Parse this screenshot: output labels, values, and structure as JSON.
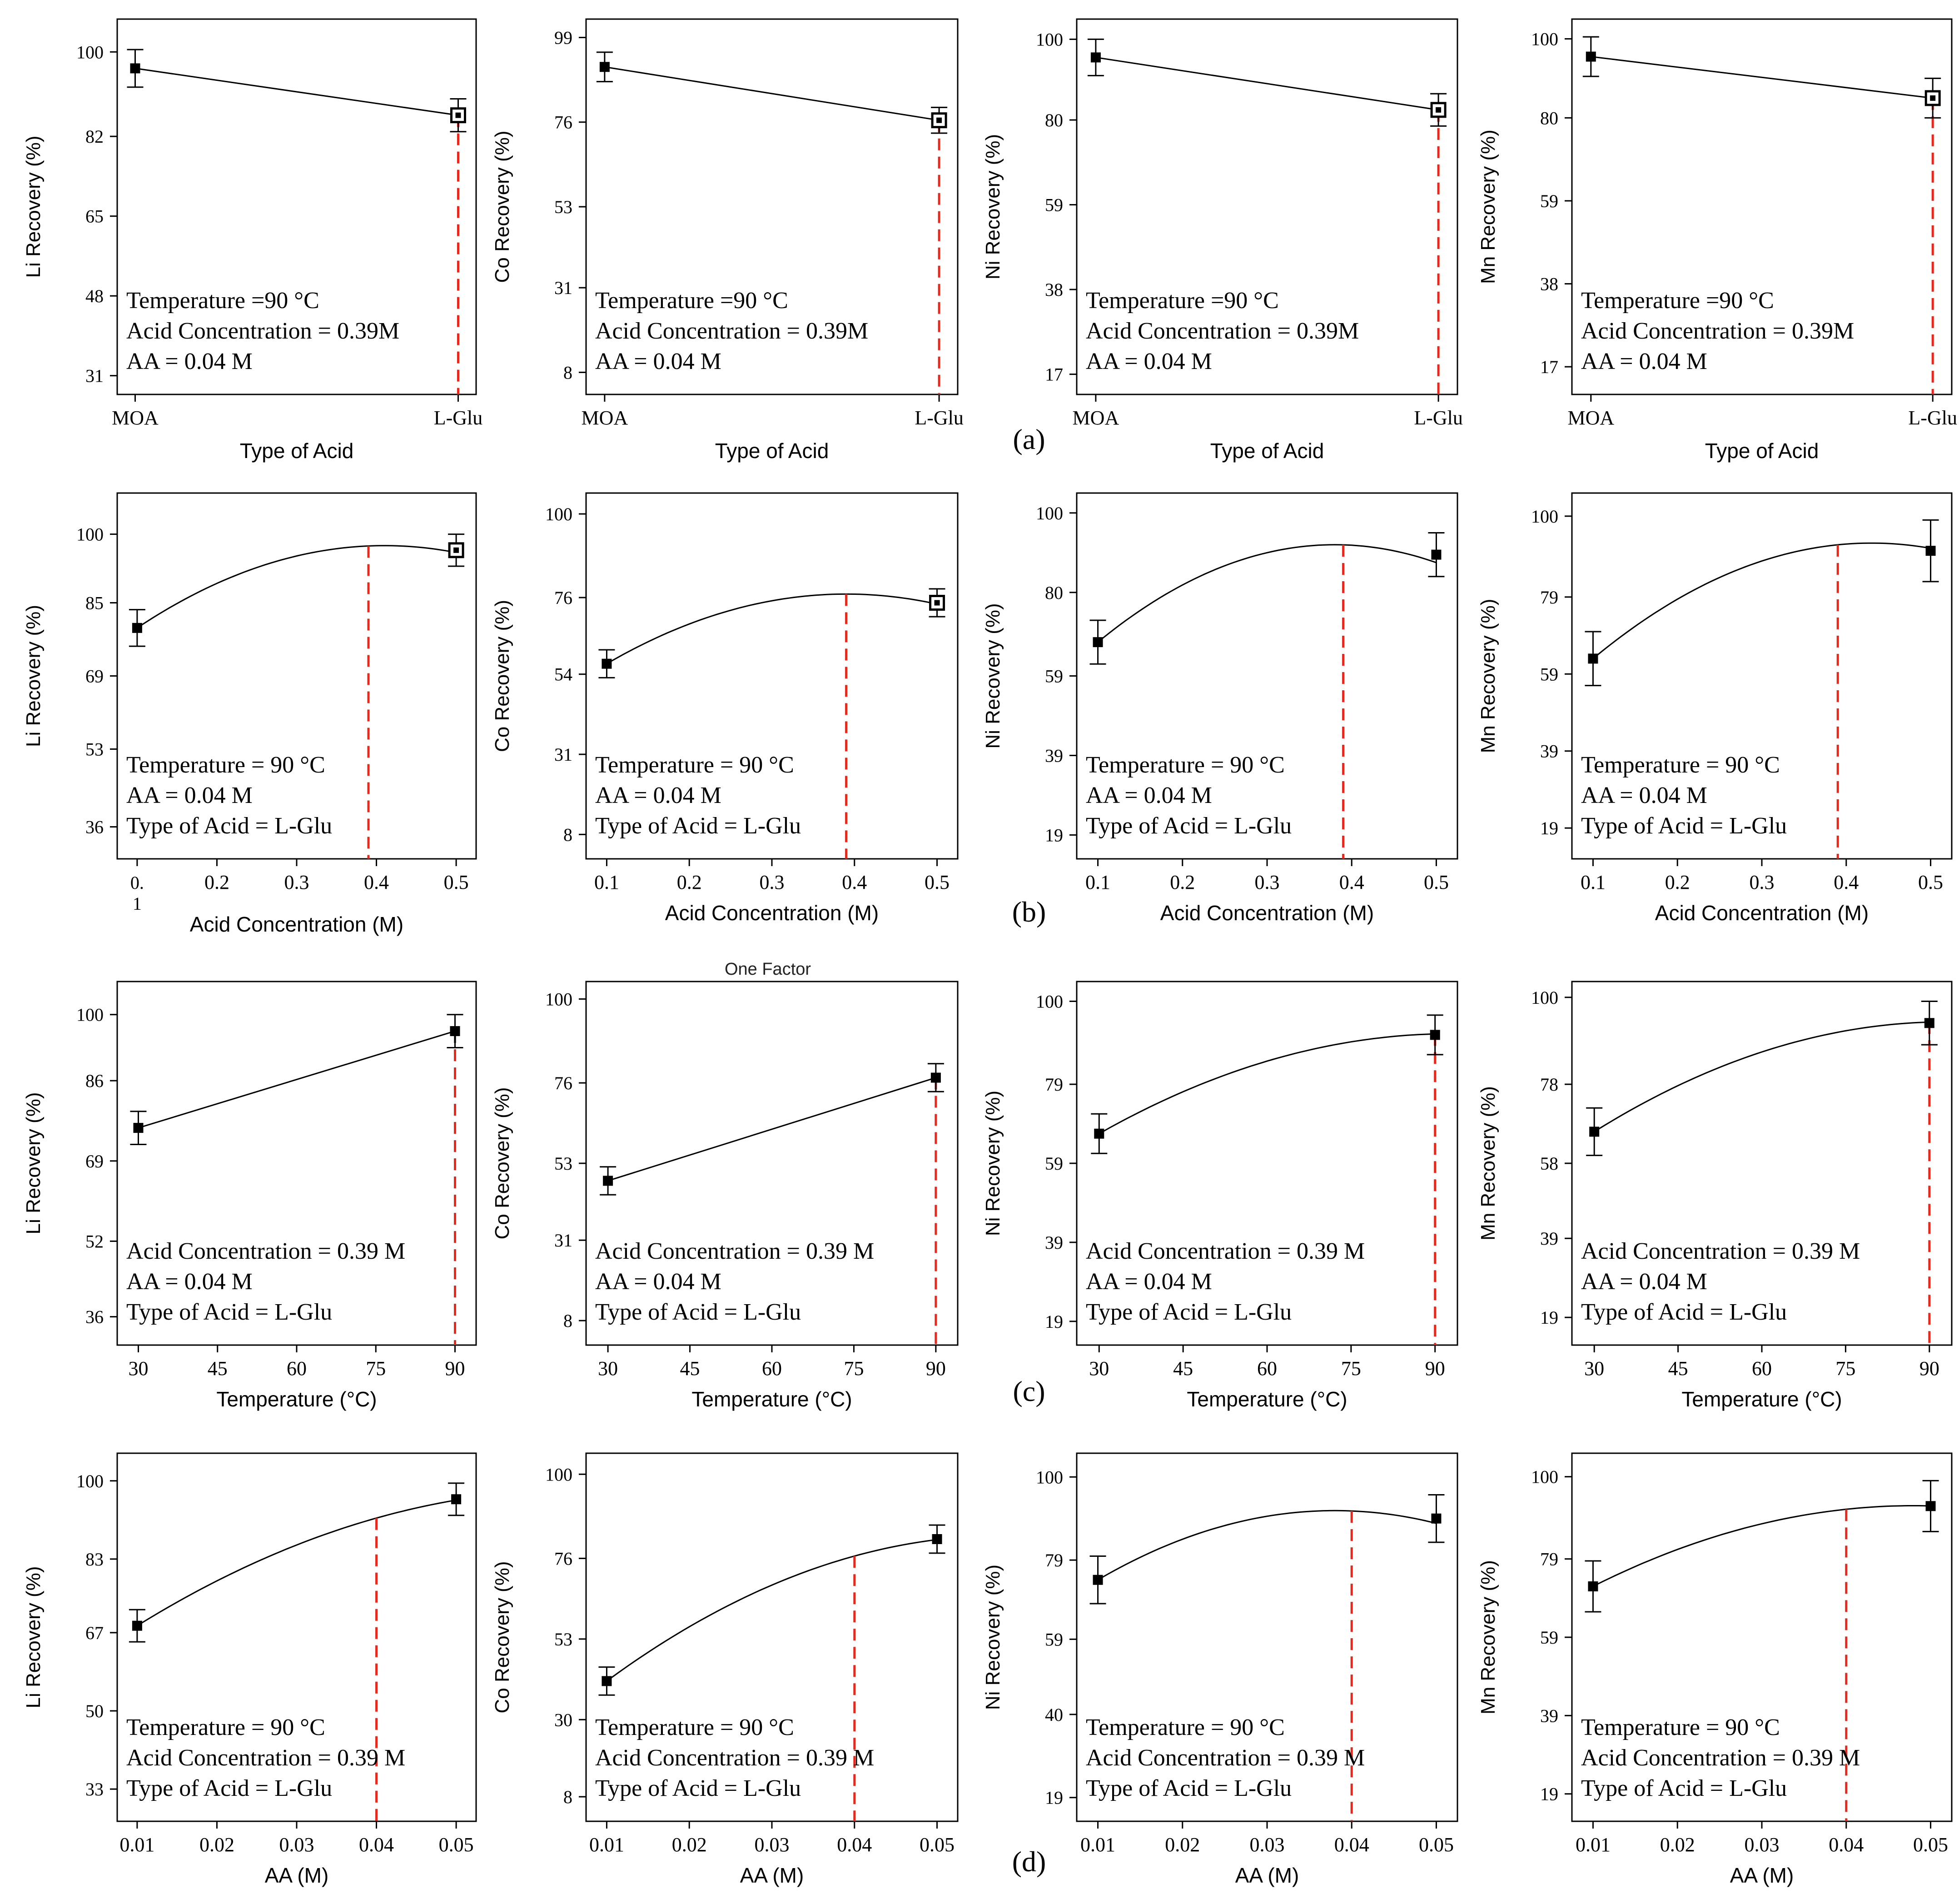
{
  "figure": {
    "row_labels": [
      "(a)",
      "(b)",
      "(c)",
      "(d)"
    ],
    "ghost_title": "One Factor",
    "extra_tick_fragments": [
      "0.",
      "1"
    ],
    "colors": {
      "axis": "#000000",
      "curve": "#000000",
      "marker": "#000000",
      "optimum_line": "#e8281b",
      "background": "#ffffff"
    }
  },
  "chart_data": [
    {
      "id": "a1",
      "row": 0,
      "col": 0,
      "type": "line",
      "xkind": "cat",
      "xlabel": "Type of Acid",
      "ylabel": "Li Recovery (%)",
      "categories": [
        "MOA",
        "L-Glu"
      ],
      "yticks": [
        "31",
        "48",
        "65",
        "82",
        "100"
      ],
      "ylim": [
        27,
        107
      ],
      "points": [
        {
          "x": "MOA",
          "y": 96.5,
          "err": 4.0,
          "marker": "filled"
        },
        {
          "x": "L-Glu",
          "y": 86.5,
          "err": 3.5,
          "marker": "hollow"
        }
      ],
      "optimum_x": "L-Glu",
      "notes": [
        "Temperature =90 °C",
        "Acid Concentration = 0.39M",
        "AA = 0.04 M"
      ]
    },
    {
      "id": "a2",
      "row": 0,
      "col": 1,
      "type": "line",
      "xkind": "cat",
      "xlabel": "Type of Acid",
      "ylabel": "Co Recovery (%)",
      "categories": [
        "MOA",
        "L-Glu"
      ],
      "yticks": [
        "8",
        "31",
        "53",
        "76",
        "99"
      ],
      "ylim": [
        2,
        104
      ],
      "points": [
        {
          "x": "MOA",
          "y": 91.0,
          "err": 4.0,
          "marker": "filled"
        },
        {
          "x": "L-Glu",
          "y": 76.5,
          "err": 3.5,
          "marker": "hollow"
        }
      ],
      "optimum_x": "L-Glu",
      "notes": [
        "Temperature =90 °C",
        "Acid Concentration = 0.39M",
        "AA = 0.04 M"
      ]
    },
    {
      "id": "a3",
      "row": 0,
      "col": 2,
      "type": "line",
      "xkind": "cat",
      "xlabel": "Type of Acid",
      "ylabel": "Ni Recovery (%)",
      "categories": [
        "MOA",
        "L-Glu"
      ],
      "yticks": [
        "17",
        "38",
        "59",
        "80",
        "100"
      ],
      "ylim": [
        12,
        105
      ],
      "points": [
        {
          "x": "MOA",
          "y": 95.5,
          "err": 4.5,
          "marker": "filled"
        },
        {
          "x": "L-Glu",
          "y": 82.5,
          "err": 4.0,
          "marker": "hollow"
        }
      ],
      "optimum_x": "L-Glu",
      "notes": [
        "Temperature =90 °C",
        "Acid Concentration = 0.39M",
        "AA = 0.04 M"
      ]
    },
    {
      "id": "a4",
      "row": 0,
      "col": 3,
      "type": "line",
      "xkind": "cat",
      "xlabel": "Type of Acid",
      "ylabel": "Mn Recovery (%)",
      "categories": [
        "MOA",
        "L-Glu"
      ],
      "yticks": [
        "17",
        "38",
        "59",
        "80",
        "100"
      ],
      "ylim": [
        10,
        105
      ],
      "points": [
        {
          "x": "MOA",
          "y": 95.5,
          "err": 5.0,
          "marker": "filled"
        },
        {
          "x": "L-Glu",
          "y": 85.0,
          "err": 5.0,
          "marker": "hollow"
        }
      ],
      "optimum_x": "L-Glu",
      "notes": [
        "Temperature =90 °C",
        "Acid Concentration = 0.39M",
        "AA = 0.04 M"
      ]
    },
    {
      "id": "b1",
      "row": 1,
      "col": 0,
      "type": "line",
      "xkind": "num",
      "xlabel": "Acid Concentration (M)",
      "ylabel": "Li Recovery (%)",
      "xticks": [
        "0.2",
        "0.3",
        "0.4",
        "0.5"
      ],
      "xlim": [
        0.075,
        0.525
      ],
      "yticks": [
        "36",
        "53",
        "69",
        "85",
        "100"
      ],
      "ylim": [
        29,
        109
      ],
      "points": [
        {
          "x": 0.1,
          "y": 79.5,
          "err": 4.0,
          "marker": "filled"
        },
        {
          "x": 0.5,
          "y": 96.5,
          "err": 3.5,
          "marker": "hollow"
        }
      ],
      "curve": {
        "peak_x": 0.41,
        "peak_y": 97.5
      },
      "optimum_x": 0.39,
      "notes": [
        "Temperature = 90 °C",
        "AA = 0.04 M",
        "Type of Acid = L-Glu"
      ]
    },
    {
      "id": "b2",
      "row": 1,
      "col": 1,
      "type": "line",
      "xkind": "num",
      "xlabel": "Acid Concentration (M)",
      "ylabel": "Co Recovery (%)",
      "xticks": [
        "0.1",
        "0.2",
        "0.3",
        "0.4",
        "0.5"
      ],
      "xlim": [
        0.075,
        0.525
      ],
      "yticks": [
        "8",
        "31",
        "54",
        "76",
        "100"
      ],
      "ylim": [
        1,
        106
      ],
      "points": [
        {
          "x": 0.1,
          "y": 57.0,
          "err": 4.0,
          "marker": "filled"
        },
        {
          "x": 0.5,
          "y": 74.5,
          "err": 4.0,
          "marker": "hollow"
        }
      ],
      "curve": {
        "peak_x": 0.39,
        "peak_y": 77.0
      },
      "optimum_x": 0.39,
      "notes": [
        "Temperature = 90 °C",
        "AA = 0.04 M",
        "Type of Acid = L-Glu"
      ]
    },
    {
      "id": "b3",
      "row": 1,
      "col": 2,
      "type": "line",
      "xkind": "num",
      "xlabel": "Acid Concentration (M)",
      "ylabel": "Ni Recovery (%)",
      "xticks": [
        "0.1",
        "0.2",
        "0.3",
        "0.4",
        "0.5"
      ],
      "xlim": [
        0.075,
        0.525
      ],
      "yticks": [
        "19",
        "39",
        "59",
        "80",
        "100"
      ],
      "ylim": [
        13,
        105
      ],
      "points": [
        {
          "x": 0.1,
          "y": 67.5,
          "err": 5.5,
          "marker": "filled"
        },
        {
          "x": 0.5,
          "y": 89.5,
          "err": 5.5,
          "marker": "filled"
        }
      ],
      "curve": {
        "peak_x": 0.38,
        "peak_y": 92.0
      },
      "optimum_x": 0.39,
      "notes": [
        "Temperature = 90 °C",
        "AA = 0.04 M",
        "Type of Acid = L-Glu"
      ]
    },
    {
      "id": "b4",
      "row": 1,
      "col": 3,
      "type": "line",
      "xkind": "num",
      "xlabel": "Acid Concentration (M)",
      "ylabel": "Mn Recovery (%)",
      "xticks": [
        "0.1",
        "0.2",
        "0.3",
        "0.4",
        "0.5"
      ],
      "xlim": [
        0.075,
        0.525
      ],
      "yticks": [
        "19",
        "39",
        "59",
        "79",
        "100"
      ],
      "ylim": [
        11,
        106
      ],
      "points": [
        {
          "x": 0.1,
          "y": 63.0,
          "err": 7.0,
          "marker": "filled"
        },
        {
          "x": 0.5,
          "y": 91.0,
          "err": 8.0,
          "marker": "filled"
        }
      ],
      "curve": {
        "peak_x": 0.43,
        "peak_y": 93.0
      },
      "optimum_x": 0.39,
      "notes": [
        "Temperature = 90 °C",
        "AA = 0.04 M",
        "Type of Acid = L-Glu"
      ]
    },
    {
      "id": "c1",
      "row": 2,
      "col": 0,
      "type": "line",
      "xkind": "num",
      "xlabel": "Temperature (°C)",
      "ylabel": "Li Recovery (%)",
      "xticks": [
        "30",
        "45",
        "60",
        "75",
        "90"
      ],
      "xlim": [
        26,
        94
      ],
      "yticks": [
        "36",
        "52",
        "69",
        "86",
        "100"
      ],
      "ylim": [
        30,
        107
      ],
      "points": [
        {
          "x": 30,
          "y": 76.0,
          "err": 3.5,
          "marker": "filled"
        },
        {
          "x": 90,
          "y": 96.5,
          "err": 3.5,
          "marker": "filled"
        }
      ],
      "curve": {
        "kind": "straight"
      },
      "optimum_x": 90,
      "notes": [
        "Acid Concentration = 0.39 M",
        "AA = 0.04 M",
        "Type of Acid = L-Glu"
      ]
    },
    {
      "id": "c2",
      "row": 2,
      "col": 1,
      "type": "line",
      "xkind": "num",
      "xlabel": "Temperature (°C)",
      "ylabel": "Co Recovery (%)",
      "xticks": [
        "30",
        "45",
        "60",
        "75",
        "90"
      ],
      "xlim": [
        26,
        94
      ],
      "yticks": [
        "8",
        "31",
        "53",
        "76",
        "100"
      ],
      "ylim": [
        1,
        105
      ],
      "points": [
        {
          "x": 30,
          "y": 48.0,
          "err": 4.0,
          "marker": "filled"
        },
        {
          "x": 90,
          "y": 77.5,
          "err": 4.0,
          "marker": "filled"
        }
      ],
      "curve": {
        "kind": "straight"
      },
      "optimum_x": 90,
      "notes": [
        "Acid Concentration = 0.39 M",
        "AA = 0.04 M",
        "Type of Acid = L-Glu"
      ]
    },
    {
      "id": "c3",
      "row": 2,
      "col": 2,
      "type": "line",
      "xkind": "num",
      "xlabel": "Temperature (°C)",
      "ylabel": "Ni Recovery (%)",
      "xticks": [
        "30",
        "45",
        "60",
        "75",
        "90"
      ],
      "xlim": [
        26,
        94
      ],
      "yticks": [
        "19",
        "39",
        "59",
        "79",
        "100"
      ],
      "ylim": [
        13,
        105
      ],
      "points": [
        {
          "x": 30,
          "y": 66.5,
          "err": 5.0,
          "marker": "filled"
        },
        {
          "x": 90,
          "y": 91.5,
          "err": 5.0,
          "marker": "filled"
        }
      ],
      "curve": {
        "peak_x": 93,
        "peak_y": 91.8
      },
      "optimum_x": 90,
      "notes": [
        "Acid Concentration = 0.39 M",
        "AA = 0.04 M",
        "Type of Acid = L-Glu"
      ]
    },
    {
      "id": "c4",
      "row": 2,
      "col": 3,
      "type": "line",
      "xkind": "num",
      "xlabel": "Temperature (°C)",
      "ylabel": "Mn Recovery (%)",
      "xticks": [
        "30",
        "45",
        "60",
        "75",
        "90"
      ],
      "xlim": [
        26,
        94
      ],
      "yticks": [
        "19",
        "39",
        "58",
        "78",
        "100"
      ],
      "ylim": [
        12,
        104
      ],
      "points": [
        {
          "x": 30,
          "y": 66.0,
          "err": 6.0,
          "marker": "filled"
        },
        {
          "x": 90,
          "y": 93.5,
          "err": 5.5,
          "marker": "filled"
        }
      ],
      "curve": {
        "peak_x": 93,
        "peak_y": 93.8
      },
      "optimum_x": 90,
      "notes": [
        "Acid Concentration = 0.39 M",
        "AA = 0.04 M",
        "Type of Acid = L-Glu"
      ]
    },
    {
      "id": "d1",
      "row": 3,
      "col": 0,
      "type": "line",
      "xkind": "num",
      "xlabel": "AA (M)",
      "ylabel": "Li Recovery (%)",
      "xticks": [
        "0.01",
        "0.02",
        "0.03",
        "0.04",
        "0.05"
      ],
      "xlim": [
        0.0075,
        0.0525
      ],
      "yticks": [
        "33",
        "50",
        "67",
        "83",
        "100"
      ],
      "ylim": [
        26,
        106
      ],
      "points": [
        {
          "x": 0.01,
          "y": 68.5,
          "err": 3.5,
          "marker": "filled"
        },
        {
          "x": 0.05,
          "y": 96.0,
          "err": 3.5,
          "marker": "filled"
        }
      ],
      "curve": {
        "peak_x": 0.065,
        "peak_y": 98.0
      },
      "optimum_x": 0.04,
      "notes": [
        "Temperature = 90 °C",
        "Acid Concentration = 0.39 M",
        "Type of Acid = L-Glu"
      ]
    },
    {
      "id": "d2",
      "row": 3,
      "col": 1,
      "type": "line",
      "xkind": "num",
      "xlabel": "AA (M)",
      "ylabel": "Co Recovery (%)",
      "xticks": [
        "0.01",
        "0.02",
        "0.03",
        "0.04",
        "0.05"
      ],
      "xlim": [
        0.0075,
        0.0525
      ],
      "yticks": [
        "8",
        "30",
        "53",
        "76",
        "100"
      ],
      "ylim": [
        1,
        106
      ],
      "points": [
        {
          "x": 0.01,
          "y": 41.0,
          "err": 4.0,
          "marker": "filled"
        },
        {
          "x": 0.05,
          "y": 81.5,
          "err": 4.0,
          "marker": "filled"
        }
      ],
      "curve": {
        "peak_x": 0.058,
        "peak_y": 82.5
      },
      "optimum_x": 0.04,
      "notes": [
        "Temperature = 90 °C",
        "Acid Concentration = 0.39 M",
        "Type of Acid = L-Glu"
      ]
    },
    {
      "id": "d3",
      "row": 3,
      "col": 2,
      "type": "line",
      "xkind": "num",
      "xlabel": "AA (M)",
      "ylabel": "Ni Recovery (%)",
      "xticks": [
        "0.01",
        "0.02",
        "0.03",
        "0.04",
        "0.05"
      ],
      "xlim": [
        0.0075,
        0.0525
      ],
      "yticks": [
        "19",
        "40",
        "59",
        "79",
        "100"
      ],
      "ylim": [
        13,
        106
      ],
      "points": [
        {
          "x": 0.01,
          "y": 74.0,
          "err": 6.0,
          "marker": "filled"
        },
        {
          "x": 0.05,
          "y": 89.5,
          "err": 6.0,
          "marker": "filled"
        }
      ],
      "curve": {
        "peak_x": 0.038,
        "peak_y": 91.5
      },
      "optimum_x": 0.04,
      "notes": [
        "Temperature = 90 °C",
        "Acid Concentration = 0.39 M",
        "Type of Acid = L-Glu"
      ]
    },
    {
      "id": "d4",
      "row": 3,
      "col": 3,
      "type": "line",
      "xkind": "num",
      "xlabel": "AA (M)",
      "ylabel": "Mn Recovery (%)",
      "xticks": [
        "0.01",
        "0.02",
        "0.03",
        "0.04",
        "0.05"
      ],
      "xlim": [
        0.0075,
        0.0525
      ],
      "yticks": [
        "19",
        "39",
        "59",
        "79",
        "100"
      ],
      "ylim": [
        12,
        106
      ],
      "points": [
        {
          "x": 0.01,
          "y": 72.0,
          "err": 6.5,
          "marker": "filled"
        },
        {
          "x": 0.05,
          "y": 92.5,
          "err": 6.5,
          "marker": "filled"
        }
      ],
      "curve": {
        "peak_x": 0.048,
        "peak_y": 92.6
      },
      "optimum_x": 0.04,
      "notes": [
        "Temperature = 90 °C",
        "Acid Concentration = 0.39 M",
        "Type of Acid = L-Glu"
      ]
    }
  ]
}
